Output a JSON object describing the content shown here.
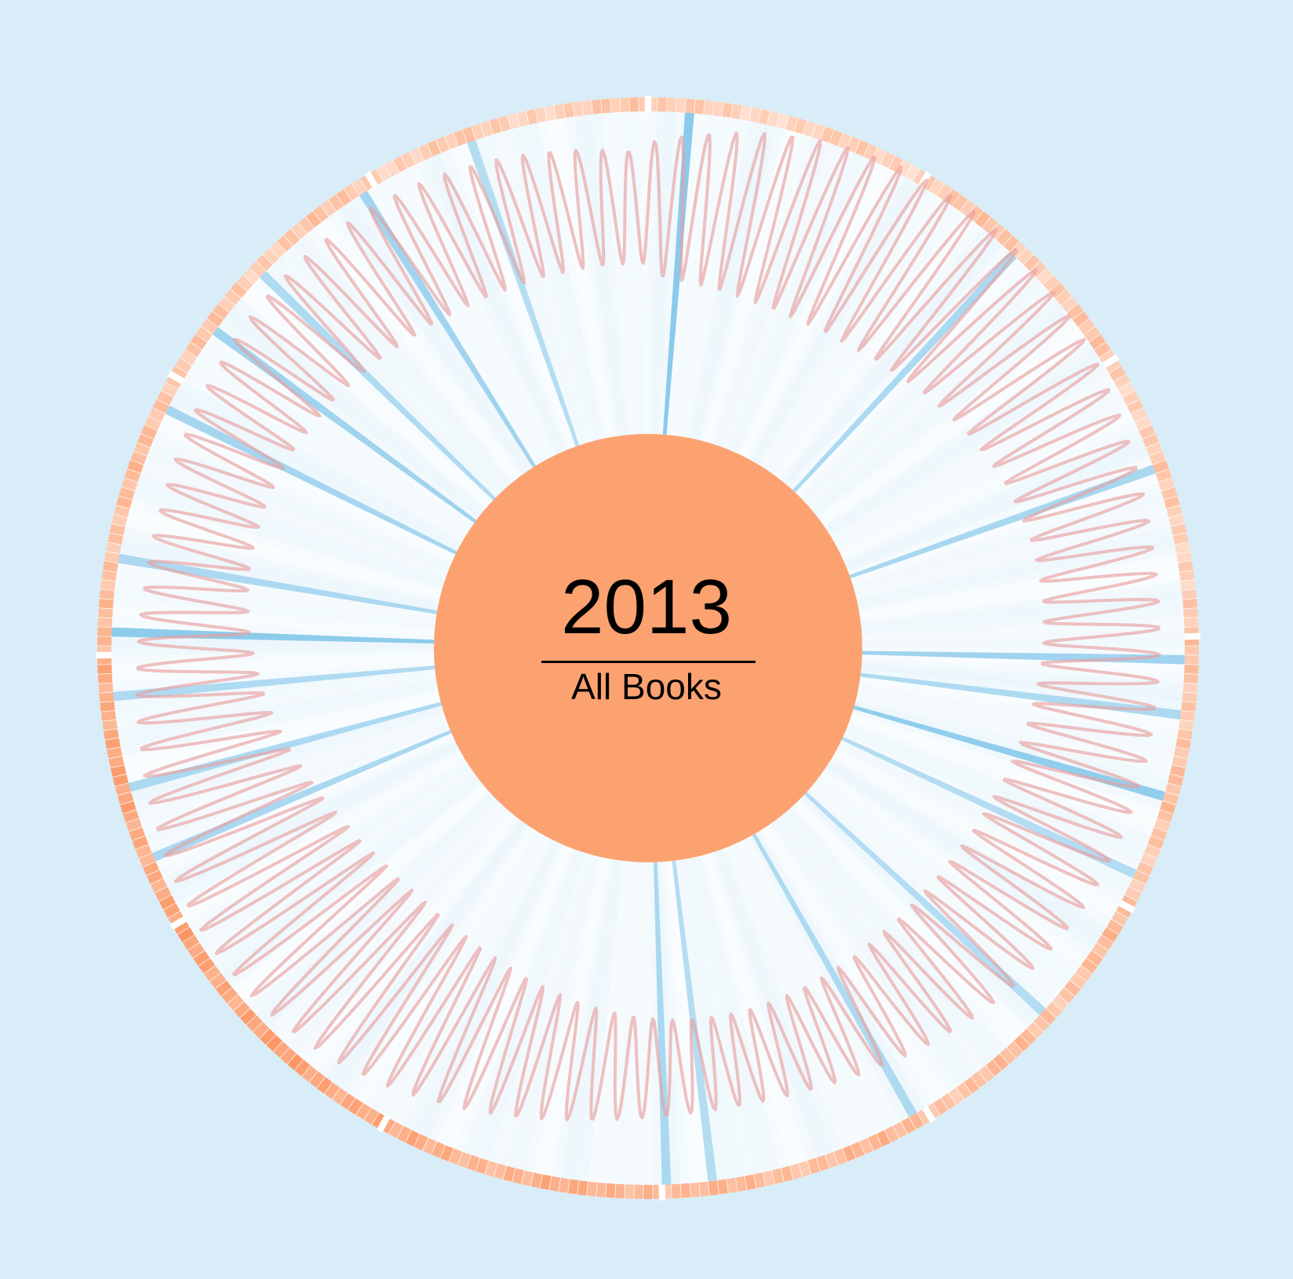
{
  "page": {
    "background_color": "#d8edf7"
  },
  "center": {
    "year": "2013",
    "subtitle": "All Books",
    "fill_color": "#fca271"
  },
  "chart_data": {
    "type": "radial",
    "title": "",
    "grid": false,
    "legend": "none",
    "period_count": 365,
    "month_count": 12,
    "colors": {
      "outer_ring_low": "#ffe8dc",
      "outer_ring_high": "#fb8f5a",
      "bar_color": "#6cbce6",
      "line_color": "#e8a0a0",
      "wedge_background": "#ffffff"
    },
    "series": [
      {
        "type": "outer-ring",
        "month_intensity": [
          0.25,
          0.35,
          0.3,
          0.4,
          0.45,
          0.5,
          0.6,
          0.75,
          0.7,
          0.45,
          0.35,
          0.3
        ]
      },
      {
        "type": "radial-bars",
        "peaks": [
          {
            "day": 4,
            "value": 0.95
          },
          {
            "day": 43,
            "value": 0.55
          },
          {
            "day": 71,
            "value": 0.6
          },
          {
            "day": 92,
            "value": 0.7
          },
          {
            "day": 98,
            "value": 0.5
          },
          {
            "day": 107,
            "value": 0.85
          },
          {
            "day": 116,
            "value": 0.4
          },
          {
            "day": 134,
            "value": 0.35
          },
          {
            "day": 152,
            "value": 0.45
          },
          {
            "day": 175,
            "value": 0.4
          },
          {
            "day": 180,
            "value": 0.5
          },
          {
            "day": 250,
            "value": 0.55
          },
          {
            "day": 258,
            "value": 0.5
          },
          {
            "day": 268,
            "value": 0.45
          },
          {
            "day": 275,
            "value": 0.9
          },
          {
            "day": 283,
            "value": 0.5
          },
          {
            "day": 300,
            "value": 0.6
          },
          {
            "day": 310,
            "value": 0.7
          },
          {
            "day": 318,
            "value": 0.45
          },
          {
            "day": 332,
            "value": 0.65
          },
          {
            "day": 345,
            "value": 0.4
          }
        ]
      },
      {
        "type": "radial-line",
        "oscillation_cycles": 120,
        "amplitude": 0.45
      }
    ]
  }
}
